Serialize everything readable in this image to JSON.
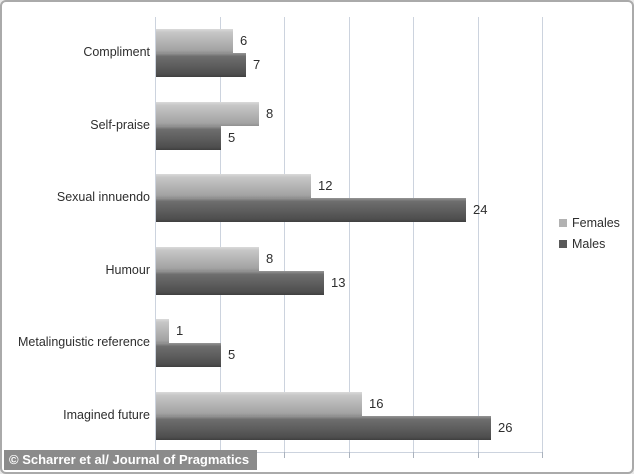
{
  "chart_data": {
    "type": "bar",
    "orientation": "horizontal",
    "title": "",
    "xlabel": "",
    "ylabel": "",
    "categories": [
      "Compliment",
      "Self-praise",
      "Sexual innuendo",
      "Humour",
      "Metalinguistic reference",
      "Imagined future"
    ],
    "series": [
      {
        "name": "Females",
        "values": [
          6,
          8,
          12,
          8,
          1,
          16
        ],
        "legend_color": "#b2b2b2",
        "gradient": [
          "#dadada",
          "#c6c6c6",
          "#a3a3a3",
          "#8f8f8f"
        ]
      },
      {
        "name": "Males",
        "values": [
          7,
          5,
          24,
          13,
          5,
          26
        ],
        "legend_color": "#595959",
        "gradient": [
          "#969696",
          "#6e6e6e",
          "#4e4e4e",
          "#3f3f3f"
        ]
      }
    ],
    "xlim": [
      0,
      30
    ],
    "grid_interval": 5,
    "grid_on": true,
    "legend_position": "right",
    "value_labels": true
  },
  "caption": {
    "text": "© Scharrer et al/ Journal of Pragmatics"
  },
  "colors": {
    "background": "#ffffff",
    "border": "#aaaaaa",
    "gridline": "#ccd3de",
    "text": "#2e2e2e",
    "caption_background": "#8b8b8b",
    "caption_text": "#ffffff"
  }
}
